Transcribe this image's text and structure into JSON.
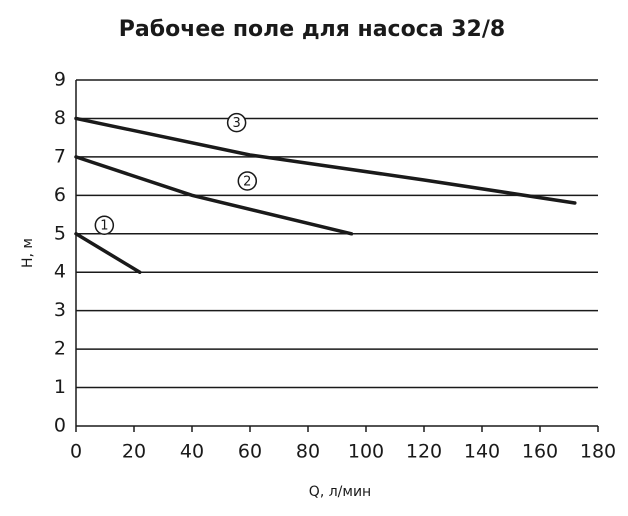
{
  "chart_data": {
    "type": "line",
    "title": "Рабочее поле для насоса  32/8",
    "x_label": "Q, л/мин",
    "y_label": "H, м",
    "xlim": [
      0,
      180
    ],
    "xticks": [
      0,
      20,
      40,
      60,
      80,
      100,
      120,
      140,
      160,
      180
    ],
    "ylim": [
      0,
      9
    ],
    "yticks": [
      0,
      1,
      2,
      3,
      4,
      5,
      6,
      7,
      8,
      9
    ],
    "grid": true,
    "series": [
      {
        "name": "1",
        "color": "#1a1a1a",
        "x": [
          0,
          22
        ],
        "values": [
          5,
          4
        ]
      },
      {
        "name": "2",
        "color": "#1a1a1a",
        "x": [
          0,
          40,
          95
        ],
        "values": [
          7,
          6,
          5
        ]
      },
      {
        "name": "3",
        "color": "#1a1a1a",
        "x": [
          0,
          60,
          120,
          172
        ],
        "values": [
          8,
          7.05,
          6.4,
          5.8
        ]
      }
    ]
  }
}
